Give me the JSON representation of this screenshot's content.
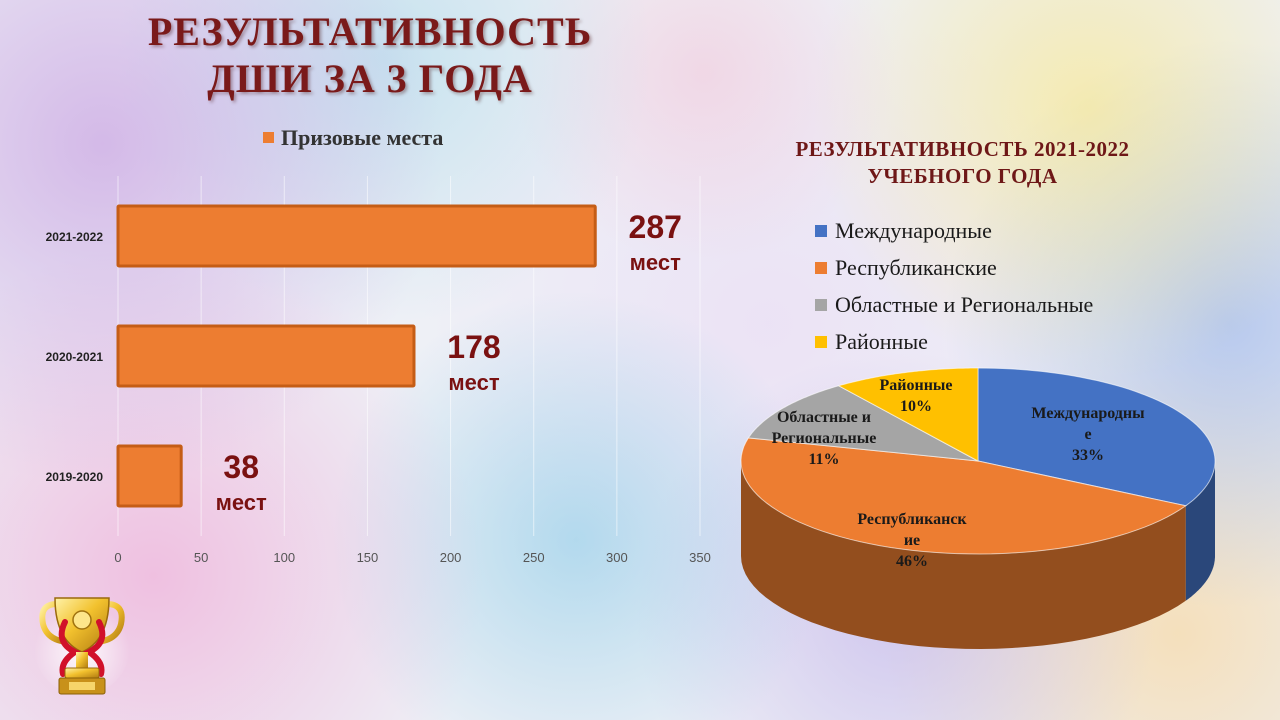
{
  "header": {
    "title_line1": "РЕЗУЛЬТАТИВНОСТЬ",
    "title_line2": "ДШИ ЗА 3 ГОДА"
  },
  "chart_data": [
    {
      "type": "bar",
      "orientation": "horizontal",
      "legend": "top",
      "categories": [
        "2021-2022",
        "2020-2021",
        "2019-2020"
      ],
      "series": [
        {
          "name": "Призовые места",
          "values": [
            287,
            178,
            38
          ],
          "color": "#ED7D31"
        }
      ],
      "data_labels": [
        {
          "value": "287",
          "unit": "мест"
        },
        {
          "value": "178",
          "unit": "мест"
        },
        {
          "value": "38",
          "unit": "мест"
        }
      ],
      "xlim": [
        0,
        350
      ],
      "x_ticks": [
        "0",
        "50",
        "100",
        "150",
        "200",
        "250",
        "300",
        "350"
      ],
      "grid": true,
      "label_color": "#7a1111"
    },
    {
      "type": "pie",
      "style": "3d",
      "legend": "top",
      "title_line1": "РЕЗУЛЬТАТИВНОСТЬ 2021-2022",
      "title_line2": "УЧЕБНОГО ГОДА",
      "slices": [
        {
          "label": "Международные",
          "value": 33,
          "color": "#4472C4",
          "data_label_lines": [
            "Международны",
            "е",
            "33%"
          ]
        },
        {
          "label": "Республиканские",
          "value": 46,
          "color": "#ED7D31",
          "data_label_lines": [
            "Республиканск",
            "ие",
            "46%"
          ]
        },
        {
          "label": "Областные и Региональные",
          "value": 11,
          "color": "#A5A5A5",
          "data_label_lines": [
            "Областные и",
            "Региональные",
            "11%"
          ]
        },
        {
          "label": "Районные",
          "value": 10,
          "color": "#FFC000",
          "data_label_lines": [
            "Районные",
            "10%"
          ]
        }
      ]
    }
  ],
  "decor": {
    "trophy": "trophy-icon"
  }
}
